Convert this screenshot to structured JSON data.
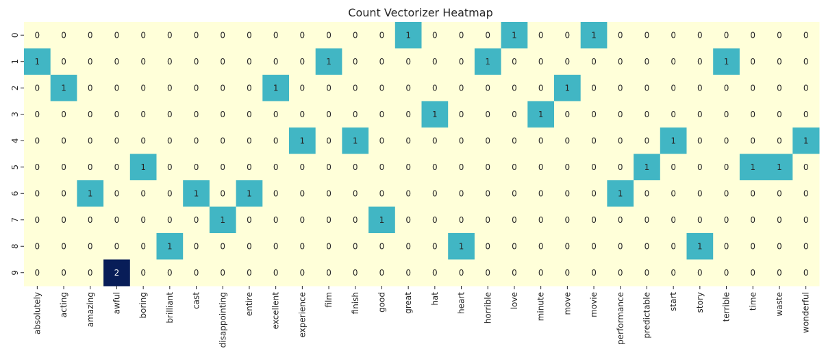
{
  "chart_data": {
    "type": "heatmap",
    "title": "Count Vectorizer Heatmap",
    "xlabel": "",
    "ylabel": "",
    "x_categories": [
      "absolutely",
      "acting",
      "amazing",
      "awful",
      "boring",
      "brilliant",
      "cast",
      "disappointing",
      "entire",
      "excellent",
      "experience",
      "film",
      "finish",
      "good",
      "great",
      "hat",
      "heart",
      "horrible",
      "love",
      "minute",
      "move",
      "movie",
      "performance",
      "predictable",
      "start",
      "story",
      "terrible",
      "time",
      "waste",
      "wonderful"
    ],
    "y_categories": [
      "0",
      "1",
      "2",
      "3",
      "4",
      "5",
      "6",
      "7",
      "8",
      "9"
    ],
    "values": [
      [
        0,
        0,
        0,
        0,
        0,
        0,
        0,
        0,
        0,
        0,
        0,
        0,
        0,
        0,
        1,
        0,
        0,
        0,
        1,
        0,
        0,
        1,
        0,
        0,
        0,
        0,
        0,
        0,
        0,
        0
      ],
      [
        1,
        0,
        0,
        0,
        0,
        0,
        0,
        0,
        0,
        0,
        0,
        1,
        0,
        0,
        0,
        0,
        0,
        1,
        0,
        0,
        0,
        0,
        0,
        0,
        0,
        0,
        1,
        0,
        0,
        0
      ],
      [
        0,
        1,
        0,
        0,
        0,
        0,
        0,
        0,
        0,
        1,
        0,
        0,
        0,
        0,
        0,
        0,
        0,
        0,
        0,
        0,
        1,
        0,
        0,
        0,
        0,
        0,
        0,
        0,
        0,
        0
      ],
      [
        0,
        0,
        0,
        0,
        0,
        0,
        0,
        0,
        0,
        0,
        0,
        0,
        0,
        0,
        0,
        1,
        0,
        0,
        0,
        1,
        0,
        0,
        0,
        0,
        0,
        0,
        0,
        0,
        0,
        0
      ],
      [
        0,
        0,
        0,
        0,
        0,
        0,
        0,
        0,
        0,
        0,
        1,
        0,
        1,
        0,
        0,
        0,
        0,
        0,
        0,
        0,
        0,
        0,
        0,
        0,
        1,
        0,
        0,
        0,
        0,
        1
      ],
      [
        0,
        0,
        0,
        0,
        1,
        0,
        0,
        0,
        0,
        0,
        0,
        0,
        0,
        0,
        0,
        0,
        0,
        0,
        0,
        0,
        0,
        0,
        0,
        1,
        0,
        0,
        0,
        1,
        1,
        0
      ],
      [
        0,
        0,
        1,
        0,
        0,
        0,
        1,
        0,
        1,
        0,
        0,
        0,
        0,
        0,
        0,
        0,
        0,
        0,
        0,
        0,
        0,
        0,
        1,
        0,
        0,
        0,
        0,
        0,
        0,
        0
      ],
      [
        0,
        0,
        0,
        0,
        0,
        0,
        0,
        1,
        0,
        0,
        0,
        0,
        0,
        1,
        0,
        0,
        0,
        0,
        0,
        0,
        0,
        0,
        0,
        0,
        0,
        0,
        0,
        0,
        0,
        0
      ],
      [
        0,
        0,
        0,
        0,
        0,
        1,
        0,
        0,
        0,
        0,
        0,
        0,
        0,
        0,
        0,
        0,
        1,
        0,
        0,
        0,
        0,
        0,
        0,
        0,
        0,
        1,
        0,
        0,
        0,
        0
      ],
      [
        0,
        0,
        0,
        2,
        0,
        0,
        0,
        0,
        0,
        0,
        0,
        0,
        0,
        0,
        0,
        0,
        0,
        0,
        0,
        0,
        0,
        0,
        0,
        0,
        0,
        0,
        0,
        0,
        0,
        0
      ]
    ],
    "colormap": "YlGnBu",
    "value_range": [
      0,
      2
    ],
    "colors": {
      "0": "#ffffd9",
      "1": "#41b6c4",
      "2": "#081d58"
    },
    "annotated": true,
    "colorbar": false,
    "grid": false
  }
}
